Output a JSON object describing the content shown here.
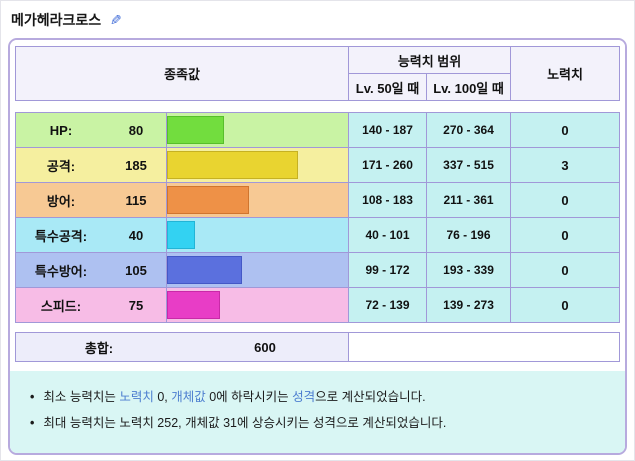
{
  "header": {
    "title": "메가헤라크로스",
    "edit_icon_glyph": "✎"
  },
  "table": {
    "bar_max": 255,
    "col_base": "종족값",
    "col_range": "능력치 범위",
    "col_effort": "노력치",
    "col_lv50": "Lv. 50일 때",
    "col_lv100": "Lv. 100일 때",
    "stats": [
      {
        "label": "HP:",
        "value": "80",
        "num": 80,
        "lv50": "140 - 187",
        "lv100": "270 - 364",
        "ev": "0",
        "colors": {
          "row": "#c9f3a4",
          "bar": "#72dd3e",
          "bar_border": "#57be2b"
        }
      },
      {
        "label": "공격:",
        "value": "185",
        "num": 185,
        "lv50": "171 - 260",
        "lv100": "337 - 515",
        "ev": "3",
        "colors": {
          "row": "#f5ef9f",
          "bar": "#e9d430",
          "bar_border": "#c6b122"
        }
      },
      {
        "label": "방어:",
        "value": "115",
        "num": 115,
        "lv50": "108 - 183",
        "lv100": "211 - 361",
        "ev": "0",
        "colors": {
          "row": "#f7c994",
          "bar": "#ee9147",
          "bar_border": "#d0752e"
        }
      },
      {
        "label": "특수공격:",
        "value": "40",
        "num": 40,
        "lv50": "40 - 101",
        "lv100": "76 - 196",
        "ev": "0",
        "colors": {
          "row": "#a9e9f6",
          "bar": "#33d2f2",
          "bar_border": "#22b4d6"
        }
      },
      {
        "label": "특수방어:",
        "value": "105",
        "num": 105,
        "lv50": "99 - 172",
        "lv100": "193 - 339",
        "ev": "0",
        "colors": {
          "row": "#aec1f1",
          "bar": "#5b70de",
          "bar_border": "#4458c6"
        }
      },
      {
        "label": "스피드:",
        "value": "75",
        "num": 75,
        "lv50": "72 - 139",
        "lv100": "139 - 273",
        "ev": "0",
        "colors": {
          "row": "#f7bce6",
          "bar": "#e83dc6",
          "bar_border": "#c929a8"
        }
      }
    ],
    "total_label": "총합:",
    "total_value": "600"
  },
  "notes": {
    "bullet": "•",
    "n1_t1": "최소 능력치는 ",
    "n1_l1": "노력치",
    "n1_t2": " 0, ",
    "n1_l2": "개체값",
    "n1_t3": " 0에 하락시키는 ",
    "n1_l3": "성격",
    "n1_t4": "으로 계산되었습니다.",
    "n2": "최대 능력치는 노력치 252, 개체값 31에 상승시키는 성격으로 계산되었습니다."
  },
  "colors": {
    "box_border": "#b7aade",
    "cell_border": "#a198d8",
    "range_cell_bg": "#c5f1f1",
    "header_cell_bg": "#f3f2fb",
    "total_row_bg": "#ededfa",
    "footer_bg": "#d9f6f4",
    "link_blue": "#4e7fd0",
    "edit_icon_blue": "#3f6bd8"
  }
}
